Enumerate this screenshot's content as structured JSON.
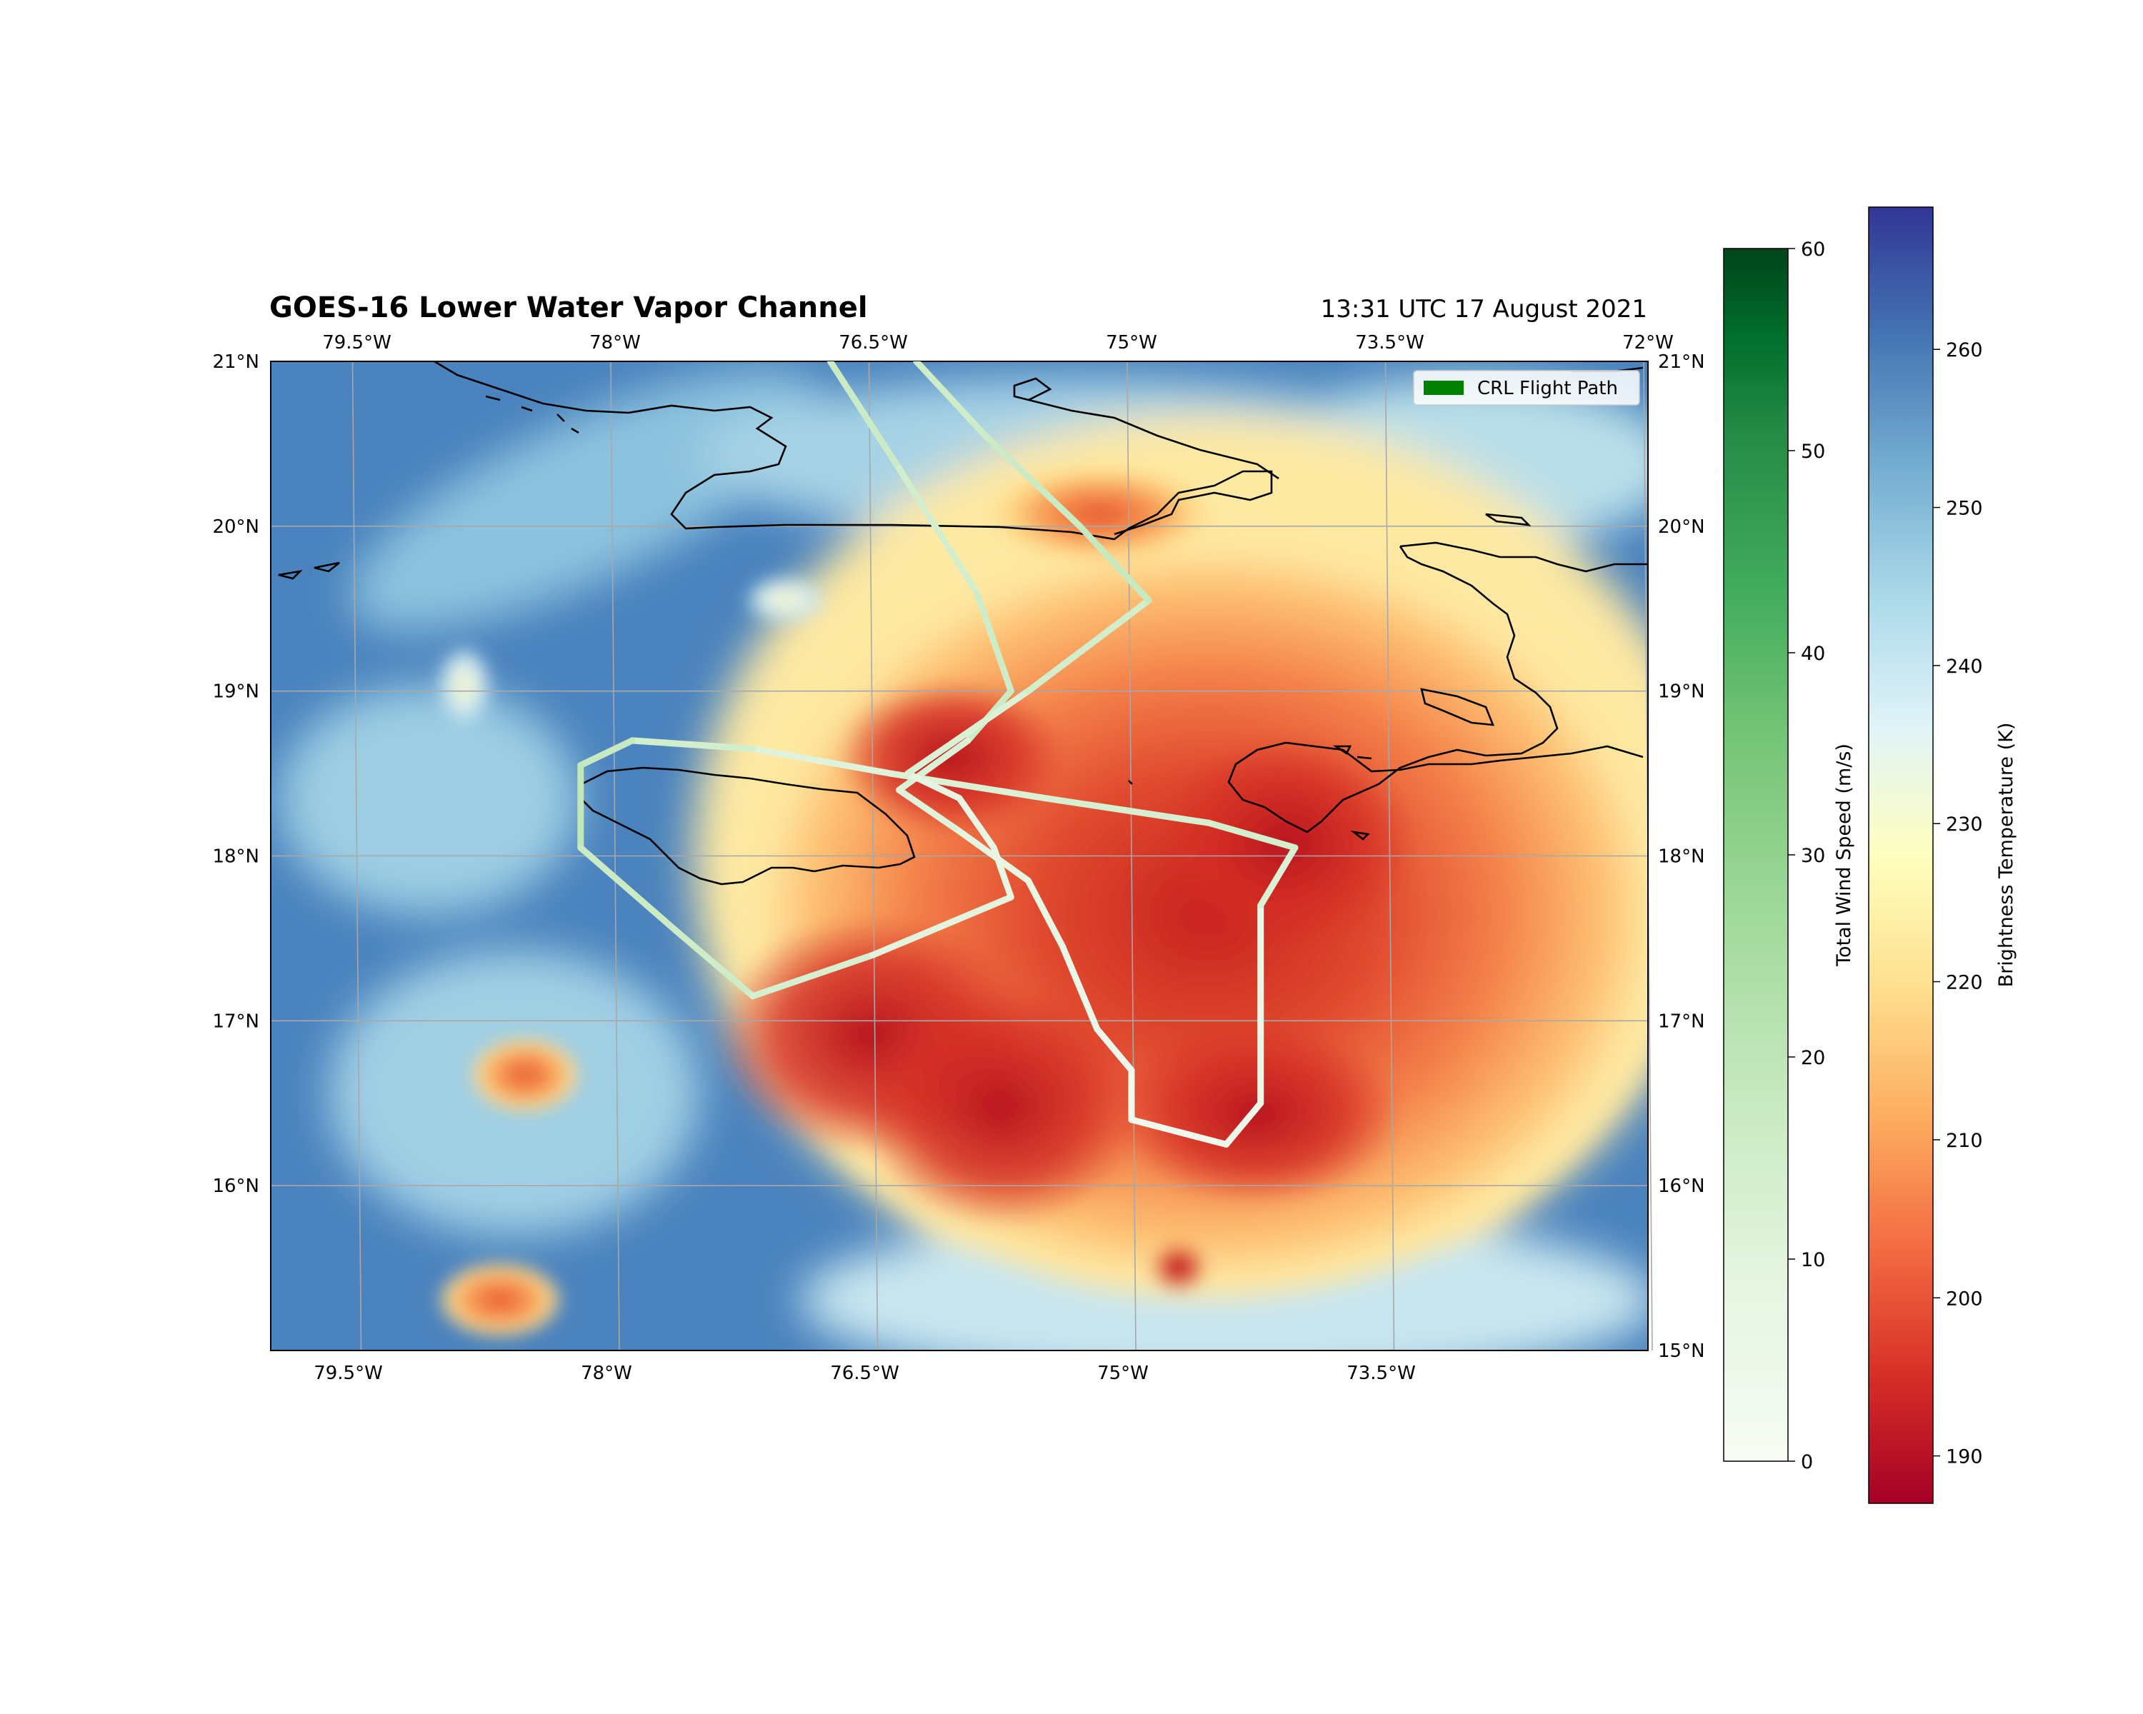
{
  "title": "GOES-16 Lower Water Vapor Channel",
  "timestamp": "13:31 UTC 17 August 2021",
  "map": {
    "extent": {
      "lon_min": -80.0,
      "lon_max": -72.0,
      "lat_min": 15.0,
      "lat_max": 21.0
    },
    "lon_ticks": [
      -79.5,
      -78.0,
      -76.5,
      -75.0,
      -73.5,
      -72.0
    ],
    "lon_tick_labels_top": [
      "79.5°W",
      "78°W",
      "76.5°W",
      "75°W",
      "73.5°W",
      "72°W"
    ],
    "lon_tick_labels_bottom": [
      "79.5°W",
      "78°W",
      "76.5°W",
      "75°W",
      "73.5°W"
    ],
    "lat_ticks": [
      21,
      20,
      19,
      18,
      17,
      16,
      15
    ],
    "lat_tick_labels_left": [
      "21°N",
      "20°N",
      "19°N",
      "18°N",
      "17°N",
      "16°N"
    ],
    "lat_tick_labels_right": [
      "21°N",
      "20°N",
      "19°N",
      "18°N",
      "17°N",
      "16°N",
      "15°N"
    ],
    "gridlines": true,
    "coastline_color": "#000000"
  },
  "legend": {
    "label": "CRL Flight Path",
    "color": "#008000",
    "placement": "top-right"
  },
  "colorbars": [
    {
      "label": "Total Wind Speed (m/s)",
      "cmap": "Greens",
      "range": [
        0,
        60
      ],
      "ticks": [
        0,
        10,
        20,
        30,
        40,
        50,
        60
      ],
      "tick_labels": [
        "0",
        "10",
        "20",
        "30",
        "40",
        "50",
        "60"
      ]
    },
    {
      "label": "Brightness Temperature (K)",
      "cmap": "RdYlBu",
      "range": [
        187,
        269
      ],
      "ticks": [
        190,
        200,
        210,
        220,
        230,
        240,
        250,
        260
      ],
      "tick_labels": [
        "190",
        "200",
        "210",
        "220",
        "230",
        "240",
        "250",
        "260"
      ]
    }
  ],
  "flight_path": [
    [
      -76.75,
      21.0
    ],
    [
      -76.35,
      20.35
    ],
    [
      -75.9,
      19.6
    ],
    [
      -75.7,
      19.0
    ],
    [
      -75.95,
      18.7
    ],
    [
      -76.35,
      18.4
    ],
    [
      -76.0,
      18.15
    ],
    [
      -75.6,
      17.85
    ],
    [
      -75.4,
      17.45
    ],
    [
      -75.2,
      16.95
    ],
    [
      -75.0,
      16.7
    ],
    [
      -75.0,
      16.4
    ],
    [
      -74.45,
      16.25
    ],
    [
      -74.25,
      16.5
    ],
    [
      -74.25,
      17.7
    ],
    [
      -74.05,
      18.05
    ],
    [
      -74.55,
      18.2
    ],
    [
      -75.5,
      18.35
    ],
    [
      -76.4,
      18.5
    ],
    [
      -77.2,
      18.65
    ],
    [
      -77.9,
      18.7
    ],
    [
      -78.2,
      18.55
    ],
    [
      -78.2,
      18.05
    ],
    [
      -77.65,
      17.55
    ],
    [
      -77.2,
      17.15
    ],
    [
      -76.5,
      17.4
    ],
    [
      -75.7,
      17.75
    ],
    [
      -75.8,
      18.05
    ],
    [
      -76.0,
      18.35
    ],
    [
      -76.3,
      18.5
    ],
    [
      -75.6,
      19.0
    ],
    [
      -74.9,
      19.55
    ],
    [
      -75.3,
      20.0
    ],
    [
      -75.85,
      20.55
    ],
    [
      -76.25,
      21.0
    ]
  ],
  "flight_path_wind_speed": [
    14,
    12,
    13,
    14,
    10,
    9,
    7,
    6,
    5,
    4,
    3,
    3,
    4,
    5,
    10,
    12,
    11,
    10,
    9,
    12,
    15,
    16,
    14,
    13,
    11,
    8,
    6,
    6,
    7,
    10,
    12,
    15,
    14,
    13,
    12
  ]
}
